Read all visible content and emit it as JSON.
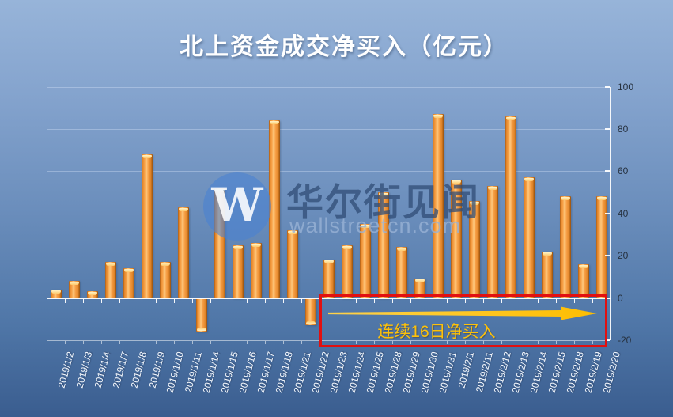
{
  "watermark": {
    "logo_letter": "W",
    "brand_text": "华尔街见闻",
    "url_text": "wallstreetcn.com"
  },
  "annotation": {
    "label": "连续16日净买入",
    "box_color": "#e21010",
    "arrow_color": "#fec107",
    "start_category": "2019/1/23",
    "end_category": "2019/2/20"
  },
  "chart_data": {
    "type": "bar",
    "title": "北上资金成交净买入（亿元）",
    "categories": [
      "2019/1/2",
      "2019/1/3",
      "2019/1/4",
      "2019/1/7",
      "2019/1/8",
      "2019/1/9",
      "2019/1/10",
      "2019/1/11",
      "2019/1/14",
      "2019/1/15",
      "2019/1/16",
      "2019/1/17",
      "2019/1/18",
      "2019/1/21",
      "2019/1/22",
      "2019/1/23",
      "2019/1/24",
      "2019/1/25",
      "2019/1/28",
      "2019/1/29",
      "2019/1/30",
      "2019/1/31",
      "2019/2/1",
      "2019/2/11",
      "2019/2/12",
      "2019/2/13",
      "2019/2/14",
      "2019/2/15",
      "2019/2/18",
      "2019/2/19",
      "2019/2/20"
    ],
    "values": [
      4,
      8,
      3,
      17,
      14,
      68,
      17,
      43,
      -16,
      52,
      25,
      26,
      84,
      32,
      -13,
      18,
      25,
      35,
      50,
      24,
      9,
      87,
      56,
      46,
      53,
      86,
      57,
      22,
      48,
      16,
      48
    ],
    "xlabel": "",
    "ylabel": "",
    "ylim": [
      -20,
      100
    ],
    "yticks": [
      100,
      80,
      60,
      40,
      20,
      0,
      -20
    ],
    "grid": true,
    "legend_position": "none",
    "yaxis_side": "right",
    "bar_color": "#f79f45",
    "background_top_color": "#97b4d9",
    "background_bottom_color": "#3a5d8f",
    "x_label_color": "#f4f8fd",
    "y_label_color": "#26313f"
  }
}
